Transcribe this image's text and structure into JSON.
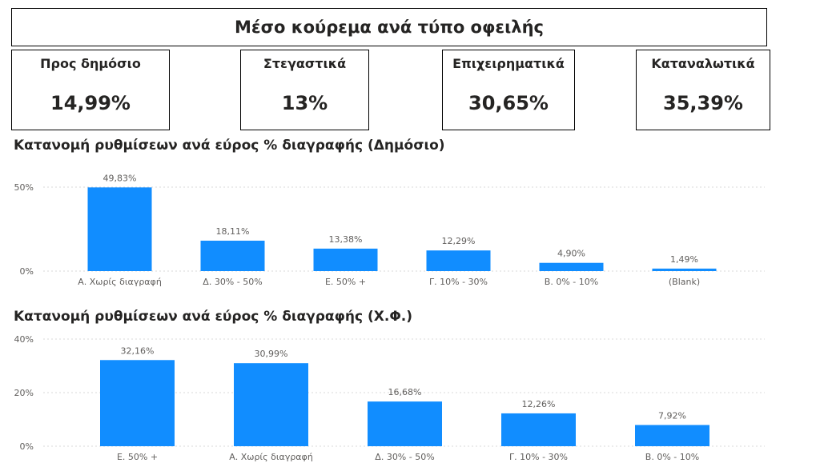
{
  "header": {
    "title": "Μέσο κούρεμα ανά τύπο οφειλής"
  },
  "kpis": [
    {
      "label": "Προς δημόσιο",
      "value": "14,99%"
    },
    {
      "label": "Στεγαστικά",
      "value": "13%"
    },
    {
      "label": "Επιχειρηματικά",
      "value": "30,65%"
    },
    {
      "label": "Καταναλωτικά",
      "value": "35,39%"
    }
  ],
  "colors": {
    "bar": "#118DFF",
    "grid": "#D9D9D9",
    "text": "#605E5C"
  },
  "chart_data": [
    {
      "type": "bar",
      "title": "Κατανομή ρυθμίσεων ανά εύρος % διαγραφής (Δημόσιο)",
      "categories": [
        "Α. Χωρίς διαγραφή",
        "Δ. 30% - 50%",
        "Ε. 50% +",
        "Γ. 10% - 30%",
        "Β. 0% - 10%",
        "(Blank)"
      ],
      "values": [
        49.83,
        18.11,
        13.38,
        12.29,
        4.9,
        1.49
      ],
      "data_labels": [
        "49,83%",
        "18,11%",
        "13,38%",
        "12,29%",
        "4,90%",
        "1,49%"
      ],
      "yticks": [
        0,
        50
      ],
      "ytick_labels": [
        "0%",
        "50%"
      ],
      "ylim": [
        0,
        50
      ],
      "grid": true
    },
    {
      "type": "bar",
      "title": "Κατανομή ρυθμίσεων ανά εύρος % διαγραφής (Χ.Φ.)",
      "categories": [
        "Ε. 50% +",
        "Α. Χωρίς διαγραφή",
        "Δ. 30% - 50%",
        "Γ. 10% - 30%",
        "Β. 0% - 10%"
      ],
      "values": [
        32.16,
        30.99,
        16.68,
        12.26,
        7.92
      ],
      "data_labels": [
        "32,16%",
        "30,99%",
        "16,68%",
        "12,26%",
        "7,92%"
      ],
      "yticks": [
        0,
        20,
        40
      ],
      "ytick_labels": [
        "0%",
        "20%",
        "40%"
      ],
      "ylim": [
        0,
        40
      ],
      "grid": true
    }
  ]
}
